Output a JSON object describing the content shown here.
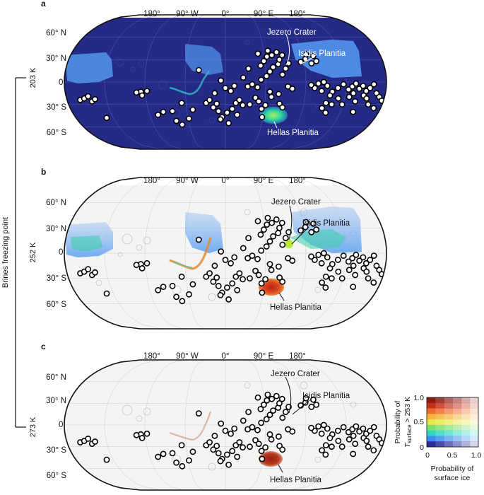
{
  "panels": [
    {
      "label": "a",
      "theme": "dark",
      "lon_labels": [
        "180°",
        "90° W",
        "0°",
        "90° E",
        "180°"
      ],
      "lat_labels": [
        "60° N",
        "30° N",
        "0°",
        "30° S",
        "60° S"
      ],
      "annotations": [
        "Jezero Crater",
        "Isidis Planitia",
        "Hellas Planitia"
      ]
    },
    {
      "label": "b",
      "theme": "light",
      "lon_labels": [
        "180°",
        "90° W",
        "0°",
        "90° E",
        "180°"
      ],
      "lat_labels": [
        "60° N",
        "30° N",
        "0°",
        "30° S",
        "60° S"
      ],
      "annotations": [
        "Jezero Crater",
        "Isidis Planitia",
        "Hellas Planitia"
      ]
    },
    {
      "label": "c",
      "theme": "light",
      "lon_labels": [
        "180°",
        "90° W",
        "0°",
        "90° E",
        "180°"
      ],
      "lat_labels": [
        "60° N",
        "30° N",
        "0°",
        "30° S",
        "60° S"
      ],
      "annotations": [
        "Jezero Crater",
        "Isidis Planitia",
        "Hellas Planitia"
      ]
    }
  ],
  "side_scale": {
    "title": "Brines freezing point",
    "ticks": [
      "203 K",
      "252 K",
      "273 K"
    ]
  },
  "legend": {
    "y_title_line1": "Probability of",
    "y_title_var": "T",
    "y_title_sub": "surface",
    "y_title_rest": " > 253 K",
    "x_title_line1": "Probability of",
    "x_title_line2": "surface ice",
    "x_ticks": [
      "0",
      "0.5",
      "1.0"
    ],
    "y_ticks": [
      "0",
      "0.5",
      "1.0"
    ]
  },
  "colors": {
    "mars_dark": "#252a86",
    "mars_light": "#f4f4f4",
    "ice_blue": "#4f8fe8",
    "hot": "#c0301c",
    "warm": "#1fcf9a",
    "marker_fill": "#ffffff",
    "marker_edge": "#000000"
  },
  "markers_lonlat": [
    [
      -165,
      -24
    ],
    [
      -160,
      -22
    ],
    [
      -152,
      -26
    ],
    [
      -148,
      -23
    ],
    [
      -155,
      -19
    ],
    [
      -143,
      -48
    ],
    [
      -95,
      -13
    ],
    [
      -88,
      -12
    ],
    [
      -73,
      -40
    ],
    [
      -80,
      -44
    ],
    [
      -62,
      -39
    ],
    [
      -94,
      -18
    ],
    [
      -100,
      -14
    ],
    [
      -50,
      -28
    ],
    [
      -60,
      -52
    ],
    [
      -54,
      -57
    ],
    [
      -44,
      -49
    ],
    [
      -38,
      -37
    ],
    [
      -22,
      -28
    ],
    [
      -18,
      -24
    ],
    [
      -14,
      -34
    ],
    [
      -10,
      -29
    ],
    [
      -8,
      -39
    ],
    [
      -4,
      -47
    ],
    [
      2,
      -41
    ],
    [
      -6,
      -50
    ],
    [
      4,
      -55
    ],
    [
      12,
      -28
    ],
    [
      16,
      -24
    ],
    [
      20,
      -31
    ],
    [
      8,
      -36
    ],
    [
      14,
      -44
    ],
    [
      28,
      -30
    ],
    [
      34,
      -21
    ],
    [
      38,
      -26
    ],
    [
      42,
      -36
    ],
    [
      46,
      -31
    ],
    [
      44,
      -47
    ],
    [
      50,
      -13
    ],
    [
      52,
      -20
    ],
    [
      60,
      -16
    ],
    [
      62,
      -29
    ],
    [
      66,
      -34
    ],
    [
      70,
      -6
    ],
    [
      75,
      -9
    ],
    [
      25,
      -6
    ],
    [
      30,
      -3
    ],
    [
      36,
      -7
    ],
    [
      40,
      3
    ],
    [
      46,
      8
    ],
    [
      50,
      14
    ],
    [
      54,
      20
    ],
    [
      60,
      24
    ],
    [
      64,
      10
    ],
    [
      68,
      18
    ],
    [
      72,
      25
    ],
    [
      40,
      22
    ],
    [
      44,
      28
    ],
    [
      48,
      34
    ],
    [
      54,
      36
    ],
    [
      60,
      40
    ],
    [
      62,
      30
    ],
    [
      66,
      36
    ],
    [
      38,
      38
    ],
    [
      50,
      42
    ],
    [
      -5,
      2
    ],
    [
      0,
      -8
    ],
    [
      6,
      -12
    ],
    [
      10,
      -5
    ],
    [
      -12,
      -15
    ],
    [
      20,
      6
    ],
    [
      26,
      18
    ],
    [
      -30,
      16
    ],
    [
      86,
      27
    ],
    [
      92,
      31
    ],
    [
      98,
      25
    ],
    [
      94,
      37
    ],
    [
      102,
      35
    ],
    [
      104,
      28
    ],
    [
      115,
      -28
    ],
    [
      112,
      -35
    ],
    [
      118,
      -41
    ],
    [
      122,
      -30
    ],
    [
      100,
      -8
    ],
    [
      108,
      -12
    ],
    [
      114,
      -5
    ],
    [
      120,
      -13
    ],
    [
      126,
      -8
    ],
    [
      132,
      -3
    ],
    [
      138,
      -10
    ],
    [
      142,
      -6
    ],
    [
      146,
      -2
    ],
    [
      150,
      -9
    ],
    [
      154,
      -5
    ],
    [
      158,
      -12
    ],
    [
      162,
      -8
    ],
    [
      166,
      -3
    ],
    [
      170,
      -15
    ],
    [
      174,
      -20
    ],
    [
      178,
      -25
    ],
    [
      140,
      -20
    ],
    [
      148,
      -26
    ],
    [
      156,
      -18
    ],
    [
      164,
      -30
    ],
    [
      172,
      -35
    ],
    [
      134,
      -30
    ],
    [
      150,
      -40
    ],
    [
      104,
      -2
    ],
    [
      110,
      0
    ],
    [
      96,
      -4
    ],
    [
      118,
      -18
    ],
    [
      128,
      -22
    ],
    [
      160,
      -22
    ],
    [
      144,
      -15
    ]
  ]
}
